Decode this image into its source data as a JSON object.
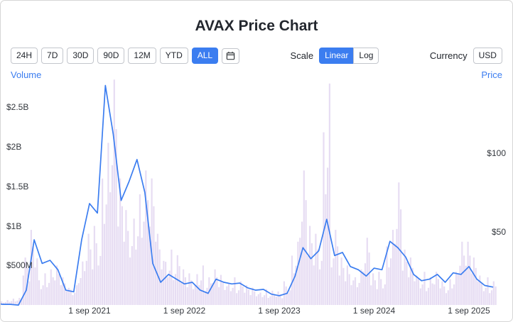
{
  "title": "AVAX Price Chart",
  "toolbar": {
    "ranges": [
      {
        "label": "24H",
        "active": false
      },
      {
        "label": "7D",
        "active": false
      },
      {
        "label": "30D",
        "active": false
      },
      {
        "label": "90D",
        "active": false
      },
      {
        "label": "12M",
        "active": false
      },
      {
        "label": "YTD",
        "active": false
      },
      {
        "label": "ALL",
        "active": true
      }
    ],
    "scale_label": "Scale",
    "scale_options": [
      {
        "label": "Linear",
        "active": true
      },
      {
        "label": "Log",
        "active": false
      }
    ],
    "currency_label": "Currency",
    "currency": "USD"
  },
  "colors": {
    "accent": "#3b7df0",
    "line": "#3b7df0",
    "volume_bar": "#e7ddf3",
    "text": "#23272e"
  },
  "chart_data": {
    "type": "line+bar",
    "title": "AVAX Price Chart",
    "left_axis_label": "Volume",
    "right_axis_label": "Price",
    "months": [
      "2020-09",
      "2020-10",
      "2020-11",
      "2020-12",
      "2021-01",
      "2021-02",
      "2021-03",
      "2021-04",
      "2021-05",
      "2021-06",
      "2021-07",
      "2021-08",
      "2021-09",
      "2021-10",
      "2021-11",
      "2021-12",
      "2022-01",
      "2022-02",
      "2022-03",
      "2022-04",
      "2022-05",
      "2022-06",
      "2022-07",
      "2022-08",
      "2022-09",
      "2022-10",
      "2022-11",
      "2022-12",
      "2023-01",
      "2023-02",
      "2023-03",
      "2023-04",
      "2023-05",
      "2023-06",
      "2023-07",
      "2023-08",
      "2023-09",
      "2023-10",
      "2023-11",
      "2023-12",
      "2024-01",
      "2024-02",
      "2024-03",
      "2024-04",
      "2024-05",
      "2024-06",
      "2024-07",
      "2024-08",
      "2024-09",
      "2024-10",
      "2024-11",
      "2024-12",
      "2025-01",
      "2025-02",
      "2025-03",
      "2025-04",
      "2025-05",
      "2025-06",
      "2025-07",
      "2025-08",
      "2025-09",
      "2025-10",
      "2025-11",
      "2025-12"
    ],
    "series": [
      {
        "name": "Price",
        "type": "line",
        "axis": "right",
        "unit": "USD",
        "values": [
          5,
          4,
          4,
          3.5,
          13,
          45,
          30,
          32,
          26,
          13,
          12,
          45,
          68,
          62,
          143,
          112,
          70,
          82,
          96,
          75,
          30,
          18,
          23,
          20,
          17,
          18,
          13,
          11,
          20,
          18,
          17,
          17.5,
          14.5,
          13,
          13.5,
          10.5,
          9.5,
          11,
          22,
          40,
          33,
          38,
          58,
          35,
          37,
          28,
          26,
          22,
          27,
          26,
          44,
          40,
          34,
          23,
          19,
          20,
          23,
          18,
          24,
          23,
          28,
          20,
          16,
          15
        ]
      },
      {
        "name": "Volume",
        "type": "bar",
        "axis": "left",
        "unit": "USD_millions",
        "values": [
          40,
          60,
          80,
          90,
          600,
          950,
          400,
          450,
          500,
          350,
          250,
          550,
          900,
          1000,
          2050,
          2850,
          1600,
          1200,
          1400,
          1700,
          1600,
          900,
          700,
          630,
          450,
          400,
          500,
          350,
          450,
          380,
          350,
          300,
          250,
          220,
          200,
          180,
          170,
          300,
          800,
          1700,
          1000,
          900,
          2800,
          950,
          600,
          500,
          450,
          850,
          400,
          420,
          950,
          1550,
          700,
          600,
          420,
          350,
          420,
          300,
          420,
          800,
          800,
          600,
          350,
          300
        ]
      }
    ],
    "left_ticks": [
      {
        "value": 2500,
        "label": "$2.5B"
      },
      {
        "value": 2000,
        "label": "$2B"
      },
      {
        "value": 1500,
        "label": "$1.5B"
      },
      {
        "value": 1000,
        "label": "$1B"
      },
      {
        "value": 500,
        "label": "$500M"
      }
    ],
    "right_ticks": [
      {
        "value": 100,
        "label": "$100"
      },
      {
        "value": 50,
        "label": "$50"
      }
    ],
    "x_ticks": [
      {
        "month_index": 12,
        "label": "1 sep 2021"
      },
      {
        "month_index": 24,
        "label": "1 sep 2022"
      },
      {
        "month_index": 36,
        "label": "1 sep 2023"
      },
      {
        "month_index": 48,
        "label": "1 sep 2024"
      },
      {
        "month_index": 60,
        "label": "1 sep 2025"
      }
    ],
    "price_range": [
      0,
      150
    ],
    "volume_range_millions": [
      0,
      2900
    ],
    "grid": false,
    "legend": "none"
  }
}
